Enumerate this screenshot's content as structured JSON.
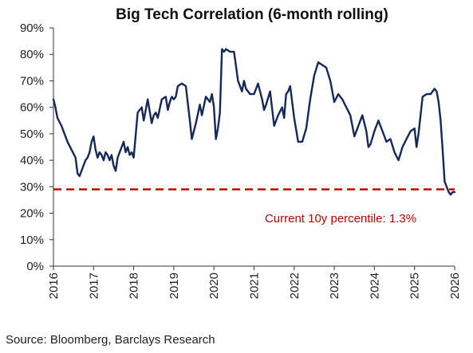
{
  "chart_data": {
    "type": "line",
    "title": "Big Tech Correlation (6-month rolling)",
    "xlabel": "",
    "ylabel": "",
    "ylim": [
      0,
      90
    ],
    "xlim": [
      2016,
      2026
    ],
    "y_ticks": [
      "0%",
      "10%",
      "20%",
      "30%",
      "40%",
      "50%",
      "60%",
      "70%",
      "80%",
      "90%"
    ],
    "x_ticks": [
      "2016",
      "2017",
      "2018",
      "2019",
      "2020",
      "2021",
      "2022",
      "2023",
      "2024",
      "2025",
      "2026"
    ],
    "grid": false,
    "series": [
      {
        "color": "#14285a",
        "x": [
          2016.0,
          2016.05,
          2016.1,
          2016.2,
          2016.35,
          2016.45,
          2016.55,
          2016.6,
          2016.65,
          2016.7,
          2016.8,
          2016.85,
          2016.9,
          2016.95,
          2017.0,
          2017.05,
          2017.1,
          2017.15,
          2017.2,
          2017.25,
          2017.3,
          2017.35,
          2017.4,
          2017.45,
          2017.5,
          2017.55,
          2017.6,
          2017.7,
          2017.75,
          2017.8,
          2017.85,
          2017.9,
          2017.95,
          2018.0,
          2018.1,
          2018.2,
          2018.25,
          2018.35,
          2018.45,
          2018.5,
          2018.55,
          2018.6,
          2018.7,
          2018.8,
          2018.85,
          2018.9,
          2018.95,
          2019.0,
          2019.05,
          2019.1,
          2019.2,
          2019.3,
          2019.4,
          2019.45,
          2019.55,
          2019.65,
          2019.7,
          2019.8,
          2019.9,
          2019.95,
          2020.0,
          2020.05,
          2020.1,
          2020.15,
          2020.2,
          2020.25,
          2020.3,
          2020.4,
          2020.5,
          2020.6,
          2020.65,
          2020.7,
          2020.75,
          2020.8,
          2020.9,
          2021.0,
          2021.1,
          2021.2,
          2021.25,
          2021.3,
          2021.4,
          2021.5,
          2021.6,
          2021.7,
          2021.75,
          2021.8,
          2021.85,
          2021.9,
          2022.0,
          2022.1,
          2022.2,
          2022.3,
          2022.4,
          2022.5,
          2022.6,
          2022.7,
          2022.8,
          2022.9,
          2023.0,
          2023.1,
          2023.2,
          2023.3,
          2023.4,
          2023.5,
          2023.6,
          2023.7,
          2023.8,
          2023.85,
          2023.9,
          2024.0,
          2024.1,
          2024.2,
          2024.3,
          2024.4,
          2024.5,
          2024.6,
          2024.7,
          2024.8,
          2024.9,
          2025.0,
          2025.05,
          2025.1,
          2025.2,
          2025.3,
          2025.4,
          2025.5,
          2025.55,
          2025.6,
          2025.65,
          2025.7,
          2025.75,
          2025.8,
          2025.85,
          2025.9,
          2025.95,
          2026.0
        ],
        "y": [
          63,
          60,
          56,
          53,
          47,
          44,
          41,
          35,
          34,
          36,
          40,
          41,
          43,
          47,
          49,
          44,
          41,
          43,
          42,
          40,
          43,
          42,
          40,
          42,
          38,
          36,
          41,
          45,
          47,
          43,
          45,
          42,
          43,
          41,
          58,
          60,
          55,
          63,
          54,
          57,
          58,
          56,
          63,
          64,
          59,
          62,
          64,
          63,
          64,
          68,
          69,
          68,
          55,
          48,
          54,
          61,
          57,
          64,
          62,
          65,
          60,
          48,
          52,
          58,
          82,
          81,
          82,
          81,
          81,
          70,
          68,
          66,
          70,
          67,
          65,
          65,
          69,
          63,
          59,
          61,
          66,
          53,
          57,
          60,
          56,
          65,
          66,
          68,
          56,
          47,
          47,
          52,
          63,
          72,
          77,
          76,
          75,
          70,
          62,
          65,
          63,
          60,
          57,
          49,
          53,
          57,
          51,
          45,
          46,
          51,
          55,
          51,
          47,
          48,
          43,
          40,
          45,
          48,
          51,
          52,
          45,
          50,
          64,
          65,
          65,
          67,
          66,
          62,
          55,
          44,
          32,
          30,
          28,
          27,
          28,
          28
        ]
      }
    ],
    "reference_line": {
      "value": 29,
      "color": "#c00000",
      "style": "dashed"
    },
    "annotation": {
      "text": "Current 10y percentile: 1.3%",
      "color": "#c00000"
    }
  },
  "source_note": "Source: Bloomberg, Barclays Research"
}
